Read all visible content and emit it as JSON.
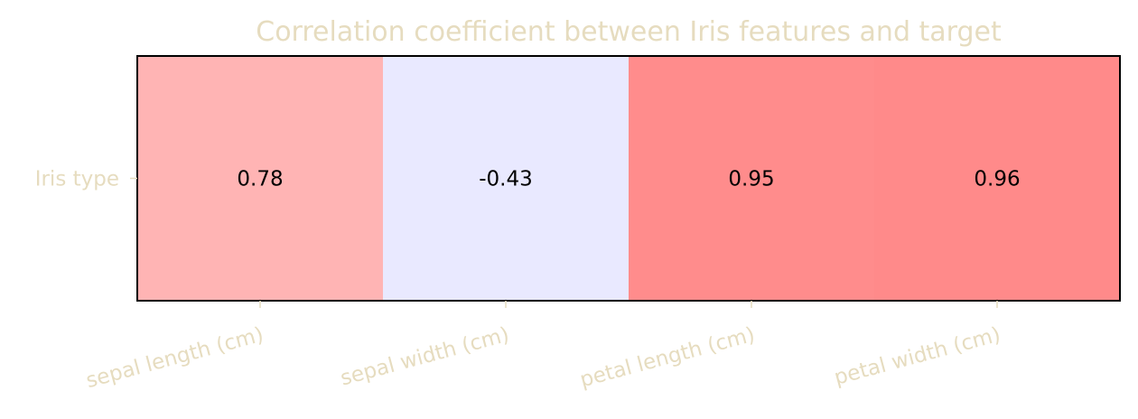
{
  "chart_data": {
    "type": "heatmap",
    "title": "Correlation coefficient between Iris features and target",
    "x_categories": [
      "sepal length (cm)",
      "sepal width (cm)",
      "petal length (cm)",
      "petal width (cm)"
    ],
    "y_categories": [
      "Iris type"
    ],
    "values": [
      [
        0.78,
        -0.43,
        0.95,
        0.96
      ]
    ],
    "value_labels": [
      [
        "0.78",
        "-0.43",
        "0.95",
        "0.96"
      ]
    ],
    "colormap": "bwr",
    "value_range": [
      -2,
      2
    ],
    "cell_colors": [
      [
        "#ffb4b4",
        "#e9e9ff",
        "#ff8c8c",
        "#ff8a8a"
      ]
    ],
    "label_color": "#000000",
    "text_color": "#e6dcbf",
    "grid": false,
    "legend": "none"
  }
}
